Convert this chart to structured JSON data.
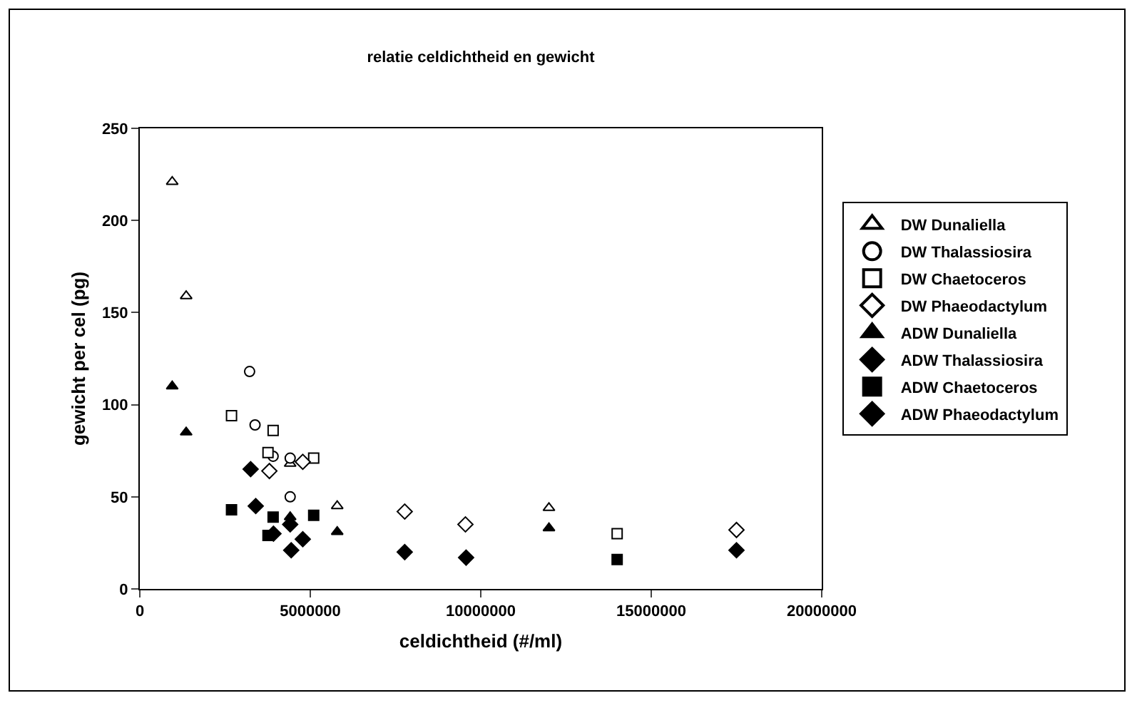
{
  "chart_data": {
    "type": "scatter",
    "title": "relatie celdichtheid en gewicht",
    "xlabel": "celdichtheid (#/ml)",
    "ylabel": "gewicht per cel (pg)",
    "xlim": [
      0,
      20000000
    ],
    "xticks": [
      0,
      5000000,
      10000000,
      15000000,
      20000000
    ],
    "ylim": [
      0,
      250
    ],
    "yticks": [
      0,
      50,
      100,
      150,
      200,
      250
    ],
    "grid": false,
    "legend": "right",
    "series": [
      {
        "name": "DW Dunaliella",
        "color": "#ffffff",
        "marker": "triangle",
        "x": [
          950000,
          1360000,
          4410000,
          5790000,
          12000000
        ],
        "values": [
          221,
          159,
          68,
          45,
          44
        ]
      },
      {
        "name": "DW Thalassiosira",
        "color": "#ffffff",
        "marker": "circle",
        "x": [
          3220000,
          3380000,
          3910000,
          4410000,
          4410000
        ],
        "values": [
          118,
          89,
          72,
          71,
          50
        ]
      },
      {
        "name": "DW Chaetoceros",
        "color": "#ffffff",
        "marker": "square",
        "x": [
          2690000,
          3910000,
          3760000,
          5100000,
          14000000
        ],
        "values": [
          94,
          86,
          74,
          71,
          30
        ]
      },
      {
        "name": "DW Phaeodactylum",
        "color": "#ffffff",
        "marker": "diamond",
        "x": [
          3800000,
          4780000,
          7770000,
          9550000,
          17500000
        ],
        "values": [
          64,
          69,
          42,
          35,
          32
        ]
      },
      {
        "name": "ADW Dunaliella",
        "color": "#000000",
        "marker": "triangle",
        "x": [
          950000,
          1360000,
          4410000,
          5790000,
          12000000
        ],
        "values": [
          110,
          85,
          39,
          31,
          33
        ]
      },
      {
        "name": "ADW Thalassiosira",
        "color": "#000000",
        "marker": "diamond",
        "x": [
          3250000,
          3400000,
          3920000,
          4410000,
          4440000
        ],
        "values": [
          65,
          45,
          30,
          35,
          21
        ]
      },
      {
        "name": "ADW Chaetoceros",
        "color": "#000000",
        "marker": "square",
        "x": [
          2690000,
          3910000,
          3760000,
          5100000,
          14000000
        ],
        "values": [
          43,
          39,
          29,
          40,
          16
        ]
      },
      {
        "name": "ADW Phaeodactylum",
        "color": "#000000",
        "marker": "diamond",
        "x": [
          4780000,
          7770000,
          9570000,
          17500000
        ],
        "values": [
          27,
          20,
          17,
          21
        ]
      }
    ]
  }
}
